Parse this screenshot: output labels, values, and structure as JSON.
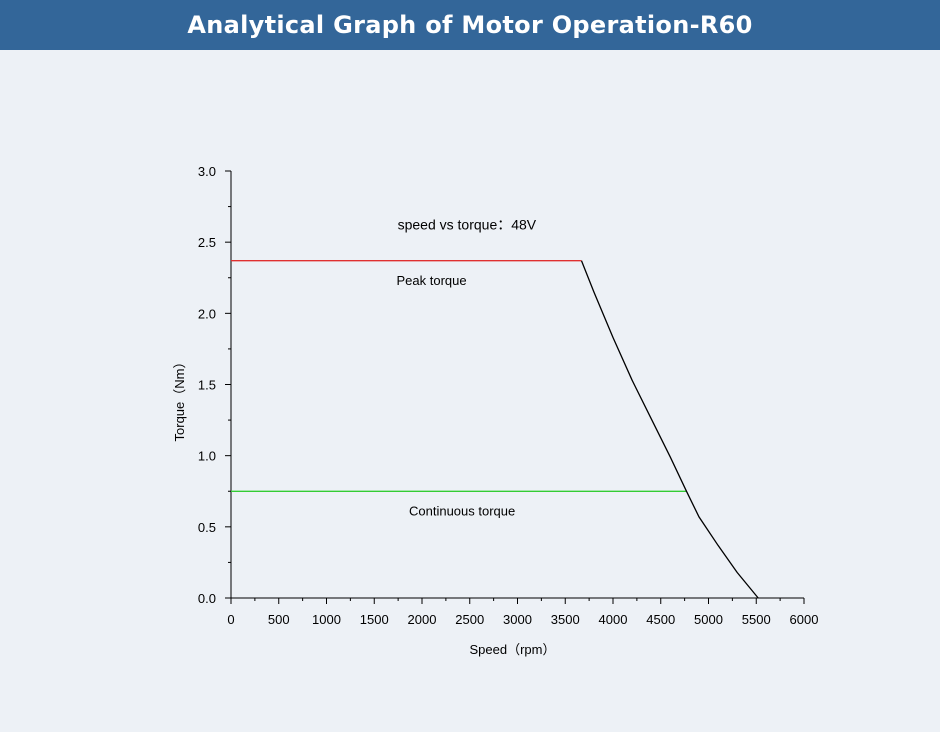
{
  "header": {
    "title": "Analytical Graph of Motor Operation-R60"
  },
  "chart_data": {
    "type": "line",
    "title": "speed vs torque：48V",
    "xlabel": "Speed（rpm）",
    "ylabel": "Torque（Nm）",
    "xlim": [
      0,
      6000
    ],
    "ylim": [
      0,
      3.0
    ],
    "xticks": [
      0,
      500,
      1000,
      1500,
      2000,
      2500,
      3000,
      3500,
      4000,
      4500,
      5000,
      5500,
      6000
    ],
    "yticks": [
      0.0,
      0.5,
      1.0,
      1.5,
      2.0,
      2.5,
      3.0
    ],
    "ytick_labels": [
      "0.0",
      "0.5",
      "1.0",
      "1.5",
      "2.0",
      "2.5",
      "3.0"
    ],
    "grid": false,
    "series": [
      {
        "name": "Peak torque",
        "color": "#e03030",
        "x": [
          0,
          3670
        ],
        "y": [
          2.37,
          2.37
        ]
      },
      {
        "name": "Continuous torque",
        "color": "#33cc33",
        "x": [
          0,
          4770
        ],
        "y": [
          0.75,
          0.75
        ]
      },
      {
        "name": "",
        "color": "#000000",
        "x": [
          3670,
          3800,
          4000,
          4200,
          4400,
          4600,
          4770,
          4900,
          5100,
          5300,
          5520
        ],
        "y": [
          2.37,
          2.15,
          1.83,
          1.53,
          1.26,
          0.99,
          0.75,
          0.57,
          0.37,
          0.18,
          0.0
        ]
      }
    ],
    "annotations": [
      {
        "text": "speed vs torque：48V",
        "x": 2470,
        "y": 2.59
      },
      {
        "text": "Peak torque",
        "x": 2100,
        "y": 2.2
      },
      {
        "text": "Continuous torque",
        "x": 2420,
        "y": 0.58
      }
    ]
  }
}
